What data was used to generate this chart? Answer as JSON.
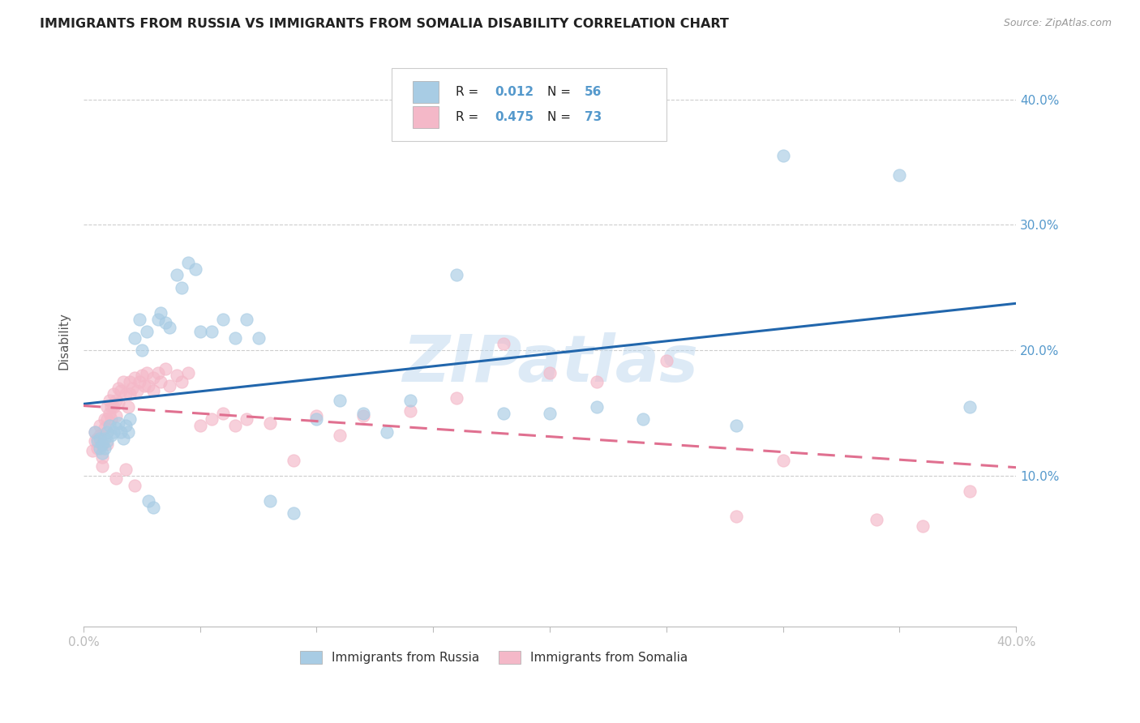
{
  "title": "IMMIGRANTS FROM RUSSIA VS IMMIGRANTS FROM SOMALIA DISABILITY CORRELATION CHART",
  "source": "Source: ZipAtlas.com",
  "ylabel": "Disability",
  "ytick_labels": [
    "10.0%",
    "20.0%",
    "30.0%",
    "40.0%"
  ],
  "ytick_values": [
    0.1,
    0.2,
    0.3,
    0.4
  ],
  "xlim": [
    0.0,
    0.4
  ],
  "ylim": [
    -0.02,
    0.435
  ],
  "russia_R": 0.012,
  "russia_N": 56,
  "somalia_R": 0.475,
  "somalia_N": 73,
  "russia_color": "#a8cce4",
  "somalia_color": "#f4b8c8",
  "russia_line_color": "#2166ac",
  "somalia_line_color": "#e07090",
  "background_color": "#ffffff",
  "grid_color": "#c8c8c8",
  "title_color": "#222222",
  "axis_label_color": "#5599cc",
  "watermark": "ZIPatlas",
  "legend_R1": "R = 0.012",
  "legend_N1": "N = 56",
  "legend_R2": "R = 0.475",
  "legend_N2": "N = 73",
  "russia_x": [
    0.005,
    0.006,
    0.007,
    0.007,
    0.008,
    0.008,
    0.009,
    0.009,
    0.01,
    0.01,
    0.011,
    0.012,
    0.013,
    0.014,
    0.015,
    0.016,
    0.017,
    0.018,
    0.019,
    0.02,
    0.022,
    0.024,
    0.025,
    0.027,
    0.028,
    0.03,
    0.032,
    0.033,
    0.035,
    0.037,
    0.04,
    0.042,
    0.045,
    0.048,
    0.05,
    0.055,
    0.06,
    0.065,
    0.07,
    0.075,
    0.08,
    0.09,
    0.1,
    0.11,
    0.12,
    0.13,
    0.14,
    0.16,
    0.18,
    0.2,
    0.22,
    0.24,
    0.28,
    0.3,
    0.35,
    0.38
  ],
  "russia_y": [
    0.135,
    0.128,
    0.13,
    0.122,
    0.125,
    0.118,
    0.13,
    0.122,
    0.135,
    0.128,
    0.14,
    0.132,
    0.135,
    0.138,
    0.142,
    0.135,
    0.13,
    0.14,
    0.135,
    0.145,
    0.21,
    0.225,
    0.2,
    0.215,
    0.08,
    0.075,
    0.225,
    0.23,
    0.222,
    0.218,
    0.26,
    0.25,
    0.27,
    0.265,
    0.215,
    0.215,
    0.225,
    0.21,
    0.225,
    0.21,
    0.08,
    0.07,
    0.145,
    0.16,
    0.15,
    0.135,
    0.16,
    0.26,
    0.15,
    0.15,
    0.155,
    0.145,
    0.14,
    0.355,
    0.34,
    0.155
  ],
  "somalia_x": [
    0.004,
    0.005,
    0.005,
    0.006,
    0.006,
    0.007,
    0.007,
    0.008,
    0.008,
    0.008,
    0.009,
    0.009,
    0.01,
    0.01,
    0.01,
    0.01,
    0.011,
    0.011,
    0.012,
    0.012,
    0.013,
    0.013,
    0.014,
    0.014,
    0.015,
    0.015,
    0.016,
    0.017,
    0.018,
    0.019,
    0.02,
    0.02,
    0.021,
    0.022,
    0.023,
    0.024,
    0.025,
    0.026,
    0.027,
    0.028,
    0.03,
    0.03,
    0.032,
    0.033,
    0.035,
    0.037,
    0.04,
    0.042,
    0.045,
    0.05,
    0.055,
    0.06,
    0.065,
    0.07,
    0.08,
    0.09,
    0.1,
    0.11,
    0.12,
    0.14,
    0.16,
    0.18,
    0.2,
    0.22,
    0.25,
    0.28,
    0.3,
    0.34,
    0.36,
    0.38,
    0.014,
    0.018,
    0.022
  ],
  "somalia_y": [
    0.12,
    0.135,
    0.128,
    0.13,
    0.122,
    0.14,
    0.132,
    0.125,
    0.115,
    0.108,
    0.145,
    0.138,
    0.155,
    0.145,
    0.135,
    0.125,
    0.16,
    0.15,
    0.155,
    0.145,
    0.165,
    0.155,
    0.16,
    0.148,
    0.17,
    0.158,
    0.168,
    0.175,
    0.165,
    0.155,
    0.175,
    0.165,
    0.17,
    0.178,
    0.168,
    0.175,
    0.18,
    0.172,
    0.182,
    0.172,
    0.178,
    0.168,
    0.182,
    0.175,
    0.185,
    0.172,
    0.18,
    0.175,
    0.182,
    0.14,
    0.145,
    0.15,
    0.14,
    0.145,
    0.142,
    0.112,
    0.148,
    0.132,
    0.148,
    0.152,
    0.162,
    0.205,
    0.182,
    0.175,
    0.192,
    0.068,
    0.112,
    0.065,
    0.06,
    0.088,
    0.098,
    0.105,
    0.092
  ]
}
